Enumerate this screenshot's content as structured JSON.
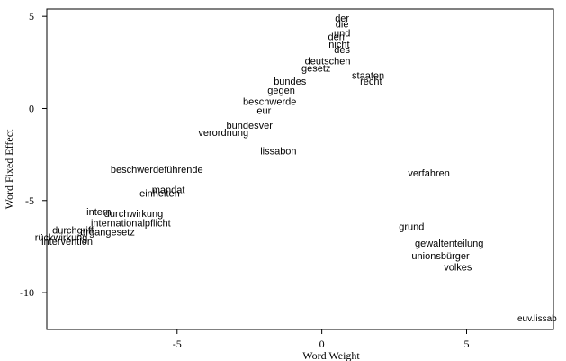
{
  "chart_data": {
    "type": "scatter",
    "xlabel": "Word Weight",
    "ylabel": "Word Fixed Effect",
    "xlim": [
      -9.5,
      8.0
    ],
    "ylim": [
      -12.0,
      5.4
    ],
    "x_ticks": [
      -5,
      0,
      5
    ],
    "y_ticks": [
      5,
      0,
      -5,
      -10
    ],
    "x_tick_labels": [
      "-5",
      "0",
      "5"
    ],
    "y_tick_labels": [
      "5",
      "0",
      "-5",
      "-10"
    ],
    "annotation": "euv.lissab",
    "grid": false,
    "points": [
      {
        "label": "der",
        "x": 0.7,
        "y": 4.9
      },
      {
        "label": "die",
        "x": 0.7,
        "y": 4.6
      },
      {
        "label": "und",
        "x": 0.7,
        "y": 4.1
      },
      {
        "label": "den",
        "x": 0.5,
        "y": 3.9
      },
      {
        "label": "nicht",
        "x": 0.6,
        "y": 3.5
      },
      {
        "label": "des",
        "x": 0.7,
        "y": 3.2
      },
      {
        "label": "deutschen",
        "x": 0.2,
        "y": 2.6
      },
      {
        "label": "gesetz",
        "x": -0.2,
        "y": 2.2
      },
      {
        "label": "staaten",
        "x": 1.6,
        "y": 1.8
      },
      {
        "label": "bundes",
        "x": -1.1,
        "y": 1.5
      },
      {
        "label": "recht",
        "x": 1.7,
        "y": 1.5
      },
      {
        "label": "gegen",
        "x": -1.4,
        "y": 1.0
      },
      {
        "label": "beschwerde",
        "x": -1.8,
        "y": 0.4
      },
      {
        "label": "eur",
        "x": -2.0,
        "y": -0.1
      },
      {
        "label": "bundesver",
        "x": -2.5,
        "y": -0.9
      },
      {
        "label": "verordnung",
        "x": -3.4,
        "y": -1.3
      },
      {
        "label": "lissabon",
        "x": -1.5,
        "y": -2.3
      },
      {
        "label": "beschwerdeführende",
        "x": -5.7,
        "y": -3.3
      },
      {
        "label": "verfahren",
        "x": 3.7,
        "y": -3.5
      },
      {
        "label": "mandat",
        "x": -5.3,
        "y": -4.4
      },
      {
        "label": "einheiten",
        "x": -5.6,
        "y": -4.6
      },
      {
        "label": "intern",
        "x": -7.7,
        "y": -5.6
      },
      {
        "label": "durchwirkung",
        "x": -6.5,
        "y": -5.7
      },
      {
        "label": "internationalpflicht",
        "x": -6.6,
        "y": -6.2
      },
      {
        "label": "durchgriff",
        "x": -8.6,
        "y": -6.6
      },
      {
        "label": "organgesetz",
        "x": -7.4,
        "y": -6.7
      },
      {
        "label": "rückwirkung",
        "x": -9.0,
        "y": -7.0
      },
      {
        "label": "intervention",
        "x": -8.8,
        "y": -7.2
      },
      {
        "label": "unionsbürger",
        "x": 4.1,
        "y": -8.0
      },
      {
        "label": "volkes",
        "x": 4.7,
        "y": -8.6
      },
      {
        "label": "grund",
        "x": 3.1,
        "y": -6.4
      },
      {
        "label": "gewaltenteilung",
        "x": 4.4,
        "y": -7.3
      }
    ]
  }
}
